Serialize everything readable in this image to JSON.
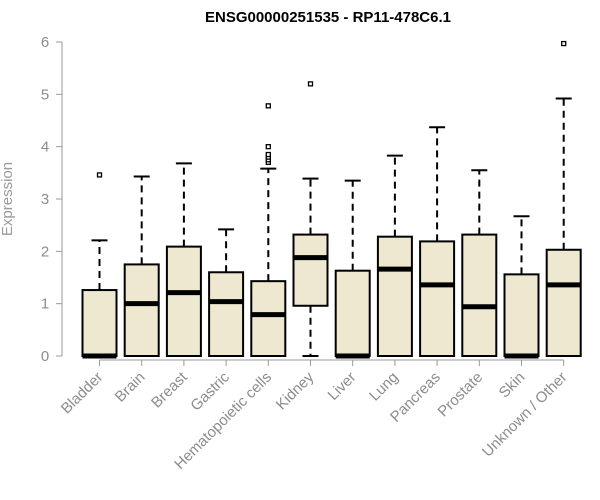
{
  "chart_data": {
    "type": "box",
    "title": "ENSG00000251535 - RP11-478C6.1",
    "xlabel": "",
    "ylabel": "Expression",
    "ylim": [
      0,
      6
    ],
    "yticks": [
      0,
      1,
      2,
      3,
      4,
      5,
      6
    ],
    "ytick_labels": [
      "0",
      "1",
      "2",
      "3",
      "4",
      "5",
      "6"
    ],
    "grid": false,
    "box_fill": "#efe8d0",
    "box_stroke": "#000000",
    "categories": [
      "Bladder",
      "Brain",
      "Breast",
      "Gastric",
      "Hematopoietic cells",
      "Kidney",
      "Liver",
      "Lung",
      "Pancreas",
      "Prostate",
      "Skin",
      "Unknown / Other"
    ],
    "boxes": [
      {
        "category": "Bladder",
        "whisker_low": 0,
        "q1": 0,
        "median": 0,
        "q3": 1.26,
        "whisker_high": 2.21,
        "outliers": [
          3.46
        ]
      },
      {
        "category": "Brain",
        "whisker_low": 0,
        "q1": 0,
        "median": 1.0,
        "q3": 1.75,
        "whisker_high": 3.43,
        "outliers": []
      },
      {
        "category": "Breast",
        "whisker_low": 0,
        "q1": 0,
        "median": 1.21,
        "q3": 2.09,
        "whisker_high": 3.68,
        "outliers": []
      },
      {
        "category": "Gastric",
        "whisker_low": 0,
        "q1": 0,
        "median": 1.04,
        "q3": 1.6,
        "whisker_high": 2.42,
        "outliers": []
      },
      {
        "category": "Hematopoietic cells",
        "whisker_low": 0,
        "q1": 0,
        "median": 0.79,
        "q3": 1.43,
        "whisker_high": 3.58,
        "outliers": [
          3.7,
          3.75,
          3.8,
          3.85,
          4.0,
          4.78
        ]
      },
      {
        "category": "Kidney",
        "whisker_low": 0,
        "q1": 0.96,
        "median": 1.88,
        "q3": 2.32,
        "whisker_high": 3.39,
        "outliers": [
          5.2
        ]
      },
      {
        "category": "Liver",
        "whisker_low": 0,
        "q1": 0,
        "median": 0,
        "q3": 1.63,
        "whisker_high": 3.35,
        "outliers": []
      },
      {
        "category": "Lung",
        "whisker_low": 0,
        "q1": 0,
        "median": 1.66,
        "q3": 2.28,
        "whisker_high": 3.83,
        "outliers": []
      },
      {
        "category": "Pancreas",
        "whisker_low": 0,
        "q1": 0,
        "median": 1.36,
        "q3": 2.19,
        "whisker_high": 4.37,
        "outliers": []
      },
      {
        "category": "Prostate",
        "whisker_low": 0,
        "q1": 0,
        "median": 0.94,
        "q3": 2.32,
        "whisker_high": 3.55,
        "outliers": []
      },
      {
        "category": "Skin",
        "whisker_low": 0,
        "q1": 0,
        "median": 0,
        "q3": 1.56,
        "whisker_high": 2.67,
        "outliers": []
      },
      {
        "category": "Unknown / Other",
        "whisker_low": 0,
        "q1": 0,
        "median": 1.36,
        "q3": 2.03,
        "whisker_high": 4.92,
        "outliers": [
          5.97
        ]
      }
    ]
  }
}
